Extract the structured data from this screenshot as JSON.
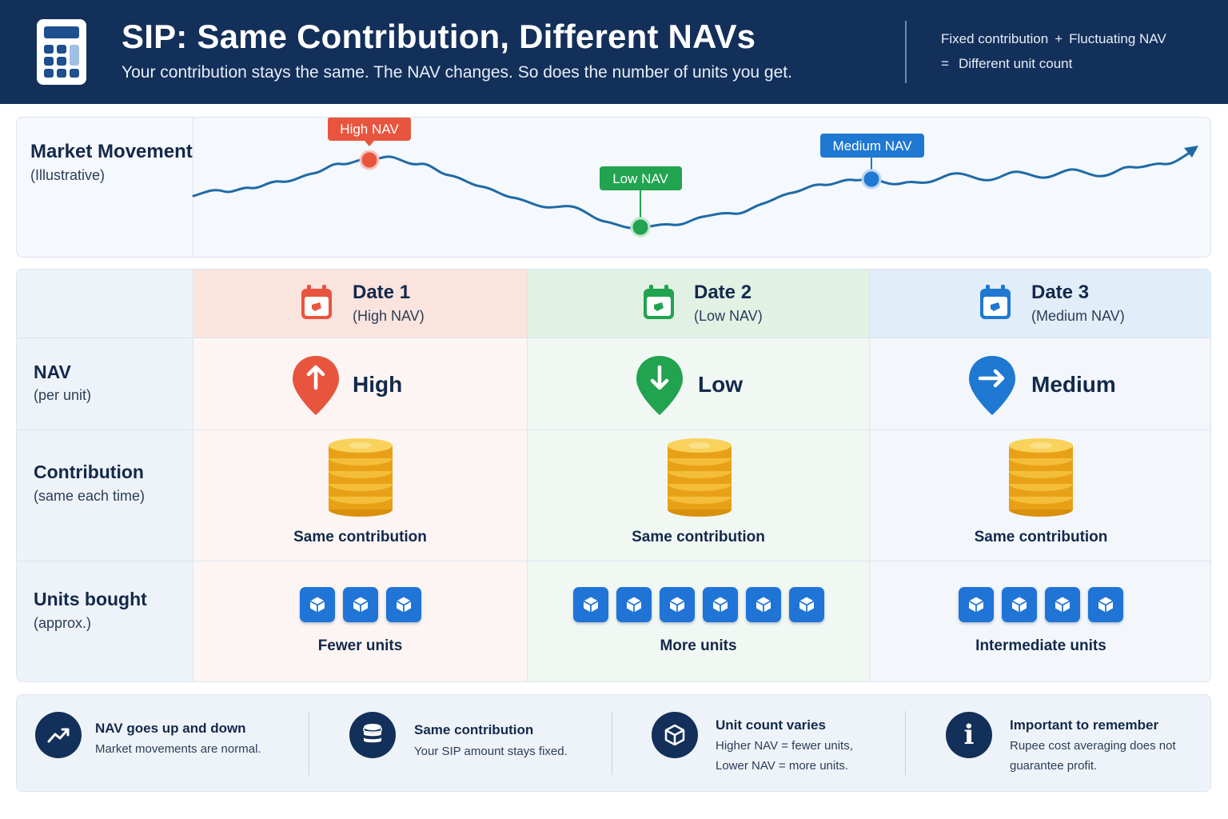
{
  "header": {
    "title": "SIP: Same Contribution, Different NAVs",
    "subtitle": "Your contribution stays the same. The NAV changes. So does the number of units you get.",
    "equation_line1_a": "Fixed contribution",
    "equation_plus": "+",
    "equation_line1_b": "Fluctuating NAV",
    "equation_equals": "=",
    "equation_line2": "Different unit count",
    "icon": "calculator-icon"
  },
  "market": {
    "title": "Market Movement",
    "subtitle": "(Illustrative)",
    "markers": {
      "high": "High NAV",
      "low": "Low NAV",
      "medium": "Medium NAV"
    },
    "colors": {
      "line": "#1f6aa6",
      "high": "#e8553f",
      "low": "#22a34f",
      "medium": "#1f78d1"
    }
  },
  "rows": {
    "nav": {
      "title": "NAV",
      "subtitle": "(per unit)"
    },
    "contribution": {
      "title": "Contribution",
      "subtitle": "(same each time)"
    },
    "units": {
      "title": "Units bought",
      "subtitle": "(approx.)"
    }
  },
  "columns": [
    {
      "date_title": "Date 1",
      "date_sub": "(High NAV)",
      "nav_level": "High",
      "contribution_label": "Same contribution",
      "units_count": 3,
      "units_label": "Fewer units",
      "accent": "#e8553f",
      "nav_icon": "arrow-up-pin-icon"
    },
    {
      "date_title": "Date 2",
      "date_sub": "(Low NAV)",
      "nav_level": "Low",
      "contribution_label": "Same contribution",
      "units_count": 6,
      "units_label": "More units",
      "accent": "#22a34f",
      "nav_icon": "arrow-down-pin-icon"
    },
    {
      "date_title": "Date 3",
      "date_sub": "(Medium NAV)",
      "nav_level": "Medium",
      "contribution_label": "Same contribution",
      "units_count": 4,
      "units_label": "Intermediate units",
      "accent": "#1f78d1",
      "nav_icon": "arrow-right-pin-icon"
    }
  ],
  "footer": [
    {
      "icon": "trend-up-icon",
      "title": "NAV goes up and down",
      "lines": [
        "Market movements are normal."
      ]
    },
    {
      "icon": "coin-stack-icon",
      "title": "Same contribution",
      "lines": [
        "Your SIP amount stays fixed."
      ]
    },
    {
      "icon": "cube-icon",
      "title": "Unit count varies",
      "lines": [
        "Higher NAV = fewer units,",
        "Lower NAV = more units."
      ]
    },
    {
      "icon": "info-icon",
      "title": "Important to remember",
      "lines": [
        "Rupee cost averaging does not",
        "guarantee profit."
      ]
    }
  ]
}
